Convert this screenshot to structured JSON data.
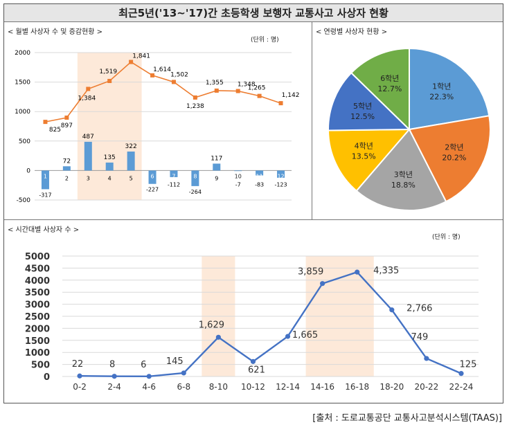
{
  "title": "최근5년('13~'17)간 초등학생 보행자 교통사고 사상자 현황",
  "source": "[출처 : 도로교통공단 교통사고분석시스템(TAAS)]",
  "chart_data": [
    {
      "id": "monthly",
      "type": "bar+line",
      "title": "< 월별 사상자 수 및 증감현황 >",
      "unit": "(단위 : 명)",
      "categories": [
        "1",
        "2",
        "3",
        "4",
        "5",
        "6",
        "7",
        "8",
        "9",
        "10",
        "11",
        "12"
      ],
      "series": [
        {
          "type": "line",
          "values": [
            825,
            897,
            1384,
            1519,
            1841,
            1614,
            1502,
            1238,
            1355,
            1348,
            1265,
            1142
          ],
          "color": "#ed7d31"
        },
        {
          "type": "bar",
          "values": [
            -317,
            72,
            487,
            135,
            322,
            -227,
            -112,
            -264,
            117,
            -7,
            -83,
            -123
          ],
          "color": "#5b9bd5"
        }
      ],
      "yticks": [
        -500,
        0,
        500,
        1000,
        1500,
        2000
      ],
      "ylim": [
        -500,
        2000
      ],
      "highlight": [
        "3",
        "5"
      ],
      "highlight_color": "#fde9d9",
      "grid": true
    },
    {
      "id": "age",
      "type": "pie",
      "title": "< 연령별 사상자 현황 >",
      "labels": [
        "1학년",
        "2학년",
        "3학년",
        "4학년",
        "5학년",
        "6학년"
      ],
      "values": [
        22.3,
        20.2,
        18.8,
        13.5,
        12.5,
        12.7
      ],
      "value_labels": [
        "22.3%",
        "20.2%",
        "18.8%",
        "13.5%",
        "12.5%",
        "12.7%"
      ],
      "colors": [
        "#5b9bd5",
        "#ed7d31",
        "#a5a5a5",
        "#ffc000",
        "#4472c4",
        "#70ad47"
      ]
    },
    {
      "id": "hourly",
      "type": "line",
      "title": "< 시간대별 사상자 수 >",
      "unit": "(단위 : 명)",
      "categories": [
        "0-2",
        "2-4",
        "4-6",
        "6-8",
        "8-10",
        "10-12",
        "12-14",
        "14-16",
        "16-18",
        "18-20",
        "20-22",
        "22-24"
      ],
      "values": [
        22,
        8,
        6,
        145,
        1629,
        621,
        1665,
        3859,
        4335,
        2766,
        749,
        125
      ],
      "value_labels": [
        "22",
        "8",
        "6",
        "145",
        "1,629",
        "621",
        "1,665",
        "3,859",
        "4,335",
        "2,766",
        "749",
        "125"
      ],
      "yticks": [
        0,
        500,
        1000,
        1500,
        2000,
        2500,
        3000,
        3500,
        4000,
        4500,
        5000
      ],
      "ylim": [
        0,
        5000
      ],
      "highlight": [
        [
          "8-10"
        ],
        [
          "14-16",
          "16-18"
        ]
      ],
      "highlight_color": "#fde9d9",
      "color": "#4472c4",
      "grid": true
    }
  ]
}
